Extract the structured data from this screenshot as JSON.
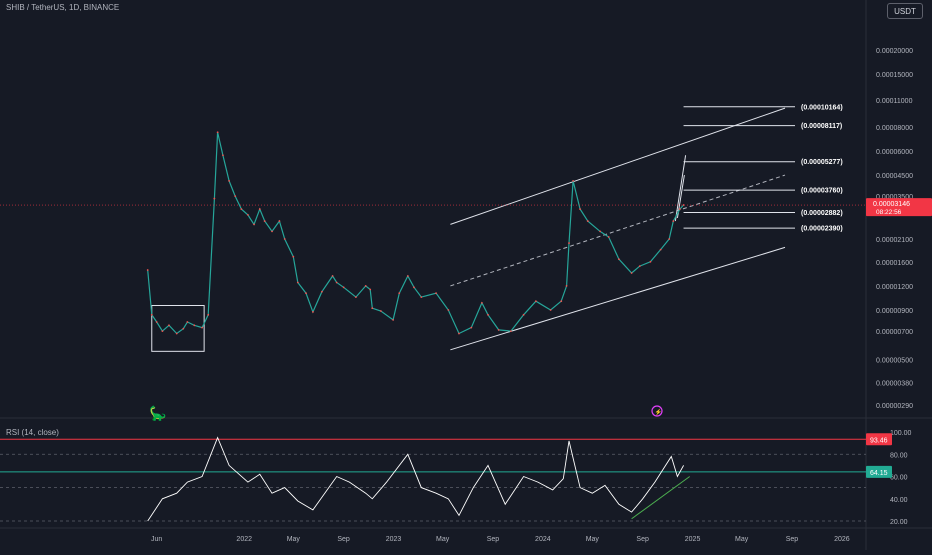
{
  "header": {
    "title": "SHIB / TetherUS, 1D, BINANCE",
    "currency": "USDT"
  },
  "chart_data": [
    {
      "type": "line",
      "title": "SHIB / TetherUS, 1D, BINANCE",
      "xlabel": "",
      "ylabel": "",
      "y_scale": "log",
      "x_tick_labels": [
        "Jun",
        "2022",
        "May",
        "Sep",
        "2023",
        "May",
        "Sep",
        "2024",
        "May",
        "Sep",
        "2025",
        "May",
        "Sep",
        "2026"
      ],
      "y_tick_labels": [
        "0.00020000",
        "0.00015000",
        "0.00011000",
        "0.00008000",
        "0.00006000",
        "0.00004500",
        "0.00003500",
        "0.00002100",
        "0.00001600",
        "0.00001200",
        "0.00000900",
        "0.00000700",
        "0.00000500",
        "0.00000380",
        "0.00000290"
      ],
      "current_price_label": "0.00003146",
      "countdown_label": "08:22:56",
      "grid": false,
      "target_levels": [
        {
          "label": "(0.00010164)",
          "value": 0.00010164
        },
        {
          "label": "(0.00008117)",
          "value": 8.117e-05
        },
        {
          "label": "(0.00005277)",
          "value": 5.277e-05
        },
        {
          "label": "(0.00003760)",
          "value": 3.76e-05
        },
        {
          "label": "(0.00002882)",
          "value": 2.882e-05
        },
        {
          "label": "(0.00002390)",
          "value": 2.39e-05
        }
      ],
      "series": [
        {
          "x": [
            "2021-05-10",
            "2021-05-20",
            "2021-06-01",
            "2021-06-15",
            "2021-07-01",
            "2021-07-20",
            "2021-08-05",
            "2021-08-15",
            "2021-09-01",
            "2021-09-20",
            "2021-10-05",
            "2021-10-20",
            "2021-10-28",
            "2021-11-10",
            "2021-11-25",
            "2021-12-10",
            "2021-12-25",
            "2022-01-10",
            "2022-01-25",
            "2022-02-08",
            "2022-02-20",
            "2022-03-10",
            "2022-03-28",
            "2022-04-10",
            "2022-05-01",
            "2022-05-12",
            "2022-06-01",
            "2022-06-18",
            "2022-07-10",
            "2022-08-05",
            "2022-08-15",
            "2022-09-01",
            "2022-10-01",
            "2022-10-25",
            "2022-11-05",
            "2022-11-10",
            "2022-12-01",
            "2022-12-31",
            "2023-01-15",
            "2023-02-05",
            "2023-02-20",
            "2023-03-10",
            "2023-04-15",
            "2023-05-15",
            "2023-06-10",
            "2023-07-10",
            "2023-08-05",
            "2023-08-20",
            "2023-09-15",
            "2023-10-15",
            "2023-11-15",
            "2023-12-15",
            "2024-01-20",
            "2024-02-15",
            "2024-02-28",
            "2024-03-05",
            "2024-03-15",
            "2024-04-01",
            "2024-04-20",
            "2024-05-20",
            "2024-06-10",
            "2024-07-05",
            "2024-08-05",
            "2024-08-25",
            "2024-09-20",
            "2024-10-15",
            "2024-11-05",
            "2024-11-15",
            "2024-12-01",
            "2024-12-10"
          ],
          "values": [
            1.45e-05,
            8.5e-06,
            7.8e-06,
            7e-06,
            7.5e-06,
            6.8e-06,
            7.2e-06,
            7.8e-06,
            7.5e-06,
            7.3e-06,
            8.5e-06,
            3.4e-05,
            7.5e-05,
            5.7e-05,
            4.2e-05,
            3.5e-05,
            3e-05,
            2.8e-05,
            2.5e-05,
            3e-05,
            2.6e-05,
            2.3e-05,
            2.6e-05,
            2.1e-05,
            1.7e-05,
            1.25e-05,
            1.1e-05,
            8.8e-06,
            1.12e-05,
            1.35e-05,
            1.25e-05,
            1.18e-05,
            1.05e-05,
            1.2e-05,
            1.15e-05,
            9.2e-06,
            8.9e-06,
            8e-06,
            1.1e-05,
            1.35e-05,
            1.18e-05,
            1.05e-05,
            1.1e-05,
            9e-06,
            6.8e-06,
            7.3e-06,
            9.8e-06,
            8.5e-06,
            7.1e-06,
            7e-06,
            8.5e-06,
            1e-05,
            9e-06,
            1e-05,
            1.2e-05,
            2e-05,
            4.2e-05,
            3e-05,
            2.6e-05,
            2.3e-05,
            2.15e-05,
            1.65e-05,
            1.4e-05,
            1.52e-05,
            1.6e-05,
            1.85e-05,
            2.1e-05,
            2.6e-05,
            3e-05,
            3.15e-05
          ]
        }
      ]
    },
    {
      "type": "line",
      "title": "RSI (14, close)",
      "y_tick_labels": [
        "100.00",
        "80.00",
        "60.00",
        "40.00",
        "20.00"
      ],
      "y_range": [
        20,
        100
      ],
      "levels": [
        {
          "label": "93.46",
          "value": 93.46,
          "color": "#f23645"
        },
        {
          "label": "64.15",
          "value": 64.15,
          "color": "#22ab94"
        }
      ],
      "series": [
        {
          "x": [
            "2021-05-10",
            "2021-06-15",
            "2021-07-20",
            "2021-08-15",
            "2021-09-20",
            "2021-10-28",
            "2021-11-25",
            "2022-01-10",
            "2022-02-08",
            "2022-03-10",
            "2022-04-10",
            "2022-05-12",
            "2022-06-18",
            "2022-08-15",
            "2022-09-15",
            "2022-10-25",
            "2022-11-10",
            "2022-12-15",
            "2023-02-05",
            "2023-03-10",
            "2023-04-15",
            "2023-05-15",
            "2023-06-10",
            "2023-07-15",
            "2023-08-20",
            "2023-10-01",
            "2023-11-15",
            "2023-12-20",
            "2024-01-25",
            "2024-02-20",
            "2024-03-05",
            "2024-04-01",
            "2024-05-01",
            "2024-06-01",
            "2024-07-05",
            "2024-08-05",
            "2024-09-01",
            "2024-10-01",
            "2024-11-10",
            "2024-11-25",
            "2024-12-10"
          ],
          "values": [
            20,
            40,
            45,
            55,
            60,
            95,
            70,
            55,
            62,
            45,
            50,
            38,
            30,
            60,
            55,
            45,
            40,
            55,
            80,
            50,
            45,
            40,
            25,
            50,
            70,
            35,
            60,
            55,
            48,
            58,
            92,
            50,
            45,
            52,
            35,
            28,
            40,
            55,
            78,
            60,
            70
          ]
        }
      ]
    }
  ]
}
